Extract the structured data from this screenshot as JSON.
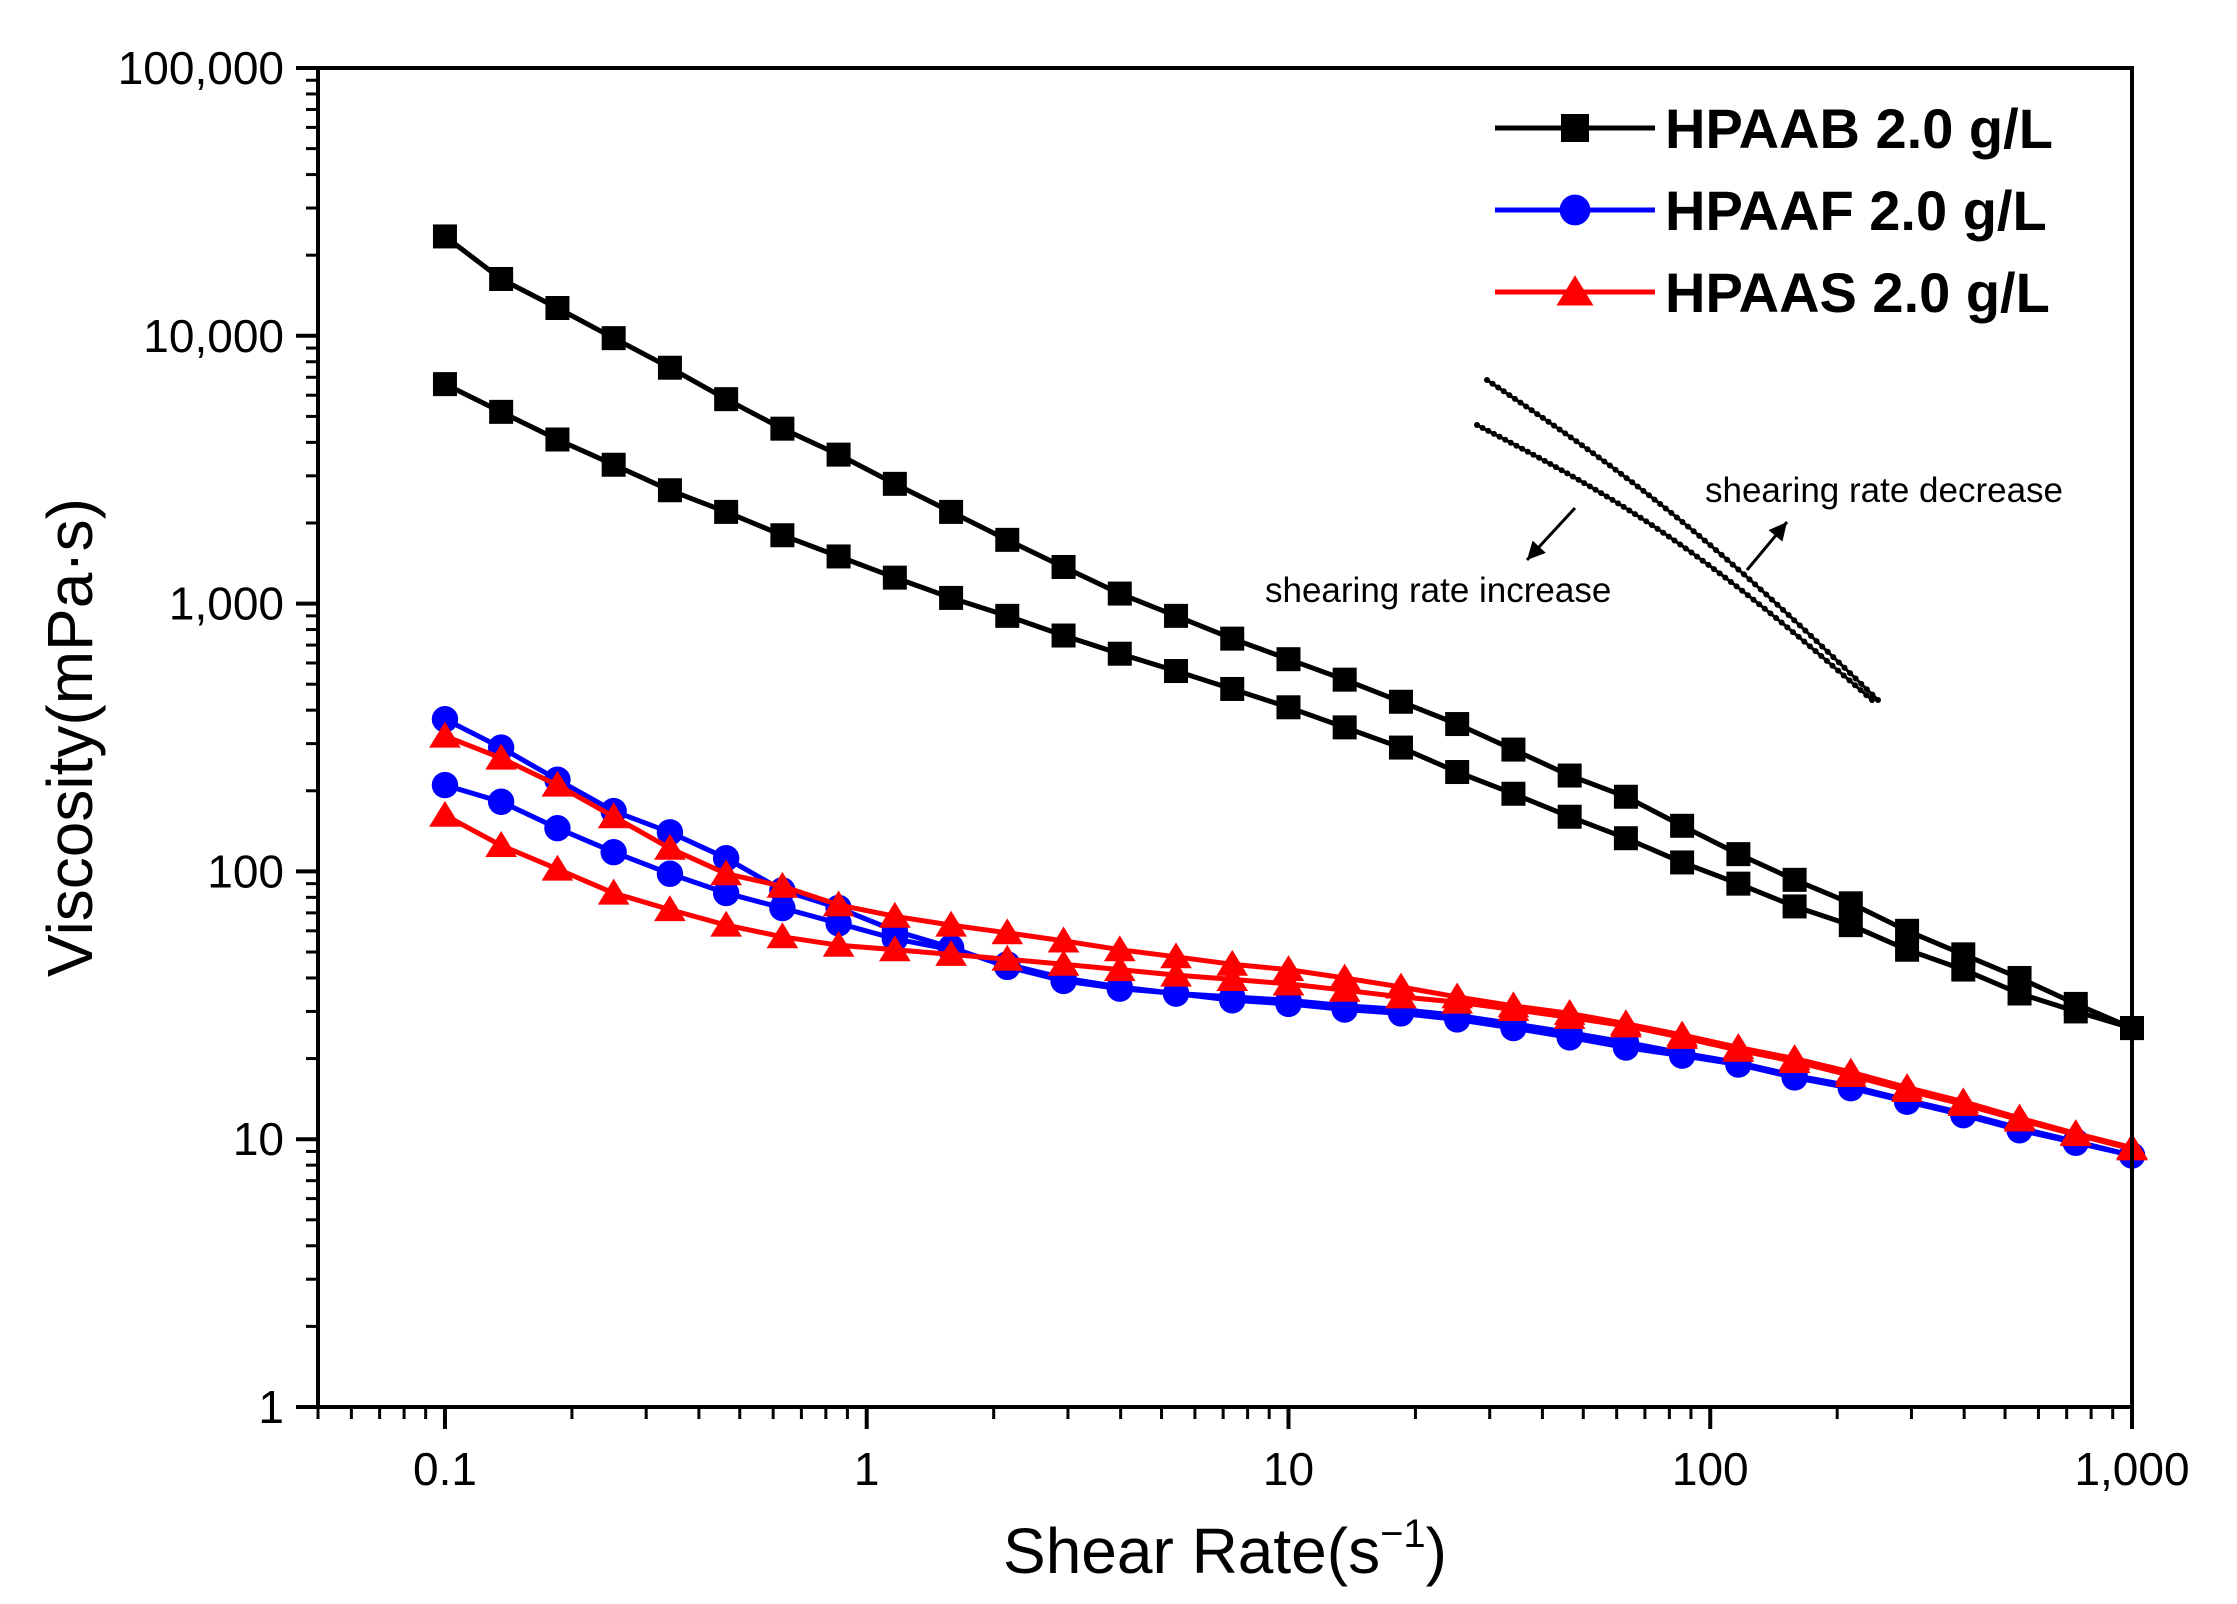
{
  "chart_data": {
    "type": "line",
    "x_scale": "log",
    "y_scale": "log",
    "xlim": [
      0.05,
      1000
    ],
    "ylim": [
      1,
      100000
    ],
    "xlabel": "Shear Rate(s",
    "xlabel_sup": "−1",
    "xlabel_close": ")",
    "ylabel": "Viscosity(mPa·s)",
    "x_ticks": [
      {
        "value": 0.1,
        "label": "0.1"
      },
      {
        "value": 1,
        "label": "1"
      },
      {
        "value": 10,
        "label": "10"
      },
      {
        "value": 100,
        "label": "100"
      },
      {
        "value": 1000,
        "label": "1,000"
      }
    ],
    "y_ticks": [
      {
        "value": 1,
        "label": "1"
      },
      {
        "value": 10,
        "label": "10"
      },
      {
        "value": 100,
        "label": "100"
      },
      {
        "value": 1000,
        "label": "1,000"
      },
      {
        "value": 10000,
        "label": "10,000"
      },
      {
        "value": 100000,
        "label": "100,000"
      }
    ],
    "x": [
      0.1,
      0.1359,
      0.1848,
      0.2512,
      0.3415,
      0.4642,
      0.631,
      0.8577,
      1.166,
      1.585,
      2.154,
      2.929,
      3.981,
      5.412,
      7.356,
      10,
      13.59,
      18.48,
      25.12,
      34.15,
      46.42,
      63.1,
      85.77,
      116.6,
      158.5,
      215.4,
      292.9,
      398.1,
      541.2,
      735.6,
      1000
    ],
    "series": [
      {
        "name": "HPAAB 2.0 g/L",
        "color": "#000000",
        "marker": "square",
        "branch": "shearing rate increase",
        "values": [
          6600,
          5200,
          4100,
          3300,
          2650,
          2200,
          1800,
          1500,
          1250,
          1050,
          900,
          760,
          650,
          560,
          480,
          410,
          345,
          290,
          235,
          195,
          160,
          133,
          108,
          90,
          74,
          63,
          51,
          43,
          35,
          30,
          26
        ]
      },
      {
        "name": "HPAAB 2.0 g/L",
        "color": "#000000",
        "marker": "square",
        "branch": "shearing rate decrease",
        "values": [
          23500,
          16300,
          12700,
          9800,
          7600,
          5800,
          4500,
          3600,
          2800,
          2200,
          1730,
          1370,
          1090,
          900,
          740,
          620,
          520,
          430,
          355,
          285,
          228,
          190,
          148,
          116,
          93,
          76,
          60,
          49,
          40,
          32,
          26
        ]
      },
      {
        "name": "HPAAF 2.0 g/L",
        "color": "#0000ff",
        "marker": "circle",
        "branch": "upper",
        "values": [
          370,
          290,
          220,
          168,
          140,
          112,
          85,
          73,
          60,
          52,
          44,
          39,
          36.5,
          35,
          34,
          33,
          31.5,
          30.5,
          29,
          27,
          25,
          23,
          21,
          19.3,
          17.3,
          15.8,
          14,
          12.5,
          11,
          9.8,
          8.7
        ]
      },
      {
        "name": "HPAAF 2.0 g/L",
        "color": "#0000ff",
        "marker": "circle",
        "branch": "lower",
        "values": [
          210,
          182,
          145,
          118,
          98,
          83,
          73,
          64,
          56,
          51,
          45,
          40,
          37,
          35,
          33,
          32,
          30.5,
          29.5,
          28,
          26,
          24,
          22,
          20.5,
          19,
          17,
          15.5,
          13.8,
          12.3,
          10.8,
          9.7,
          8.7
        ]
      },
      {
        "name": "HPAAS 2.0 g/L",
        "color": "#ff0000",
        "marker": "triangle",
        "branch": "upper",
        "values": [
          320,
          265,
          210,
          160,
          122,
          98,
          88,
          75,
          68,
          63,
          59,
          55,
          51,
          48,
          45,
          43,
          40,
          37,
          34,
          31.5,
          29.5,
          27,
          24.5,
          22,
          20,
          17.8,
          15.6,
          13.8,
          12,
          10.5,
          9.3
        ]
      },
      {
        "name": "HPAAS 2.0 g/L",
        "color": "#ff0000",
        "marker": "triangle",
        "branch": "lower",
        "values": [
          162,
          125,
          102,
          83,
          72,
          63,
          57,
          53,
          51,
          49,
          47,
          45,
          43,
          41,
          39.5,
          38,
          36,
          34,
          32.5,
          30.5,
          28.5,
          26.5,
          24,
          21.5,
          19.5,
          17.3,
          15.2,
          13.5,
          11.8,
          10.4,
          9.2
        ]
      }
    ],
    "legend": [
      {
        "label": "HPAAB 2.0 g/L",
        "color": "#000000",
        "marker": "square"
      },
      {
        "label": "HPAAF 2.0 g/L",
        "color": "#0000ff",
        "marker": "circle"
      },
      {
        "label": "HPAAS 2.0 g/L",
        "color": "#ff0000",
        "marker": "triangle"
      }
    ],
    "legend_position": "top-right",
    "annotations": {
      "increase_label": "shearing rate increase",
      "decrease_label": "shearing rate decrease"
    }
  }
}
